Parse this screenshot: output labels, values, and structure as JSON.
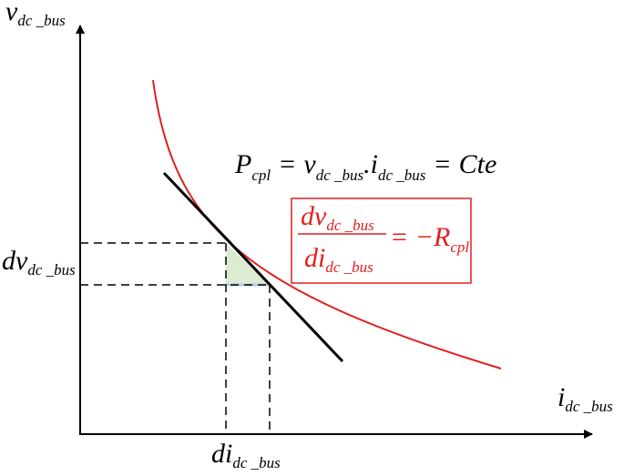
{
  "y_axis": {
    "main": "v",
    "sub": "dc _bus"
  },
  "x_axis": {
    "main": "i",
    "sub": "dc _bus"
  },
  "dv_label": {
    "main": "dv",
    "sub": "dc _bus"
  },
  "di_label": {
    "main": "di",
    "sub": "dc _bus"
  },
  "equation": {
    "p": "P",
    "p_sub": "cpl",
    "eq1": "=",
    "v": "v",
    "v_sub": "dc _bus",
    "dot": ".",
    "i": "i",
    "i_sub": "dc _bus",
    "eq2": "=",
    "rhs": "Cte"
  },
  "box": {
    "num": "dv",
    "num_sub": "dc _bus",
    "den": "di",
    "den_sub": "dc _bus",
    "rhs": "= −R",
    "rhs_sub": "cpl"
  }
}
